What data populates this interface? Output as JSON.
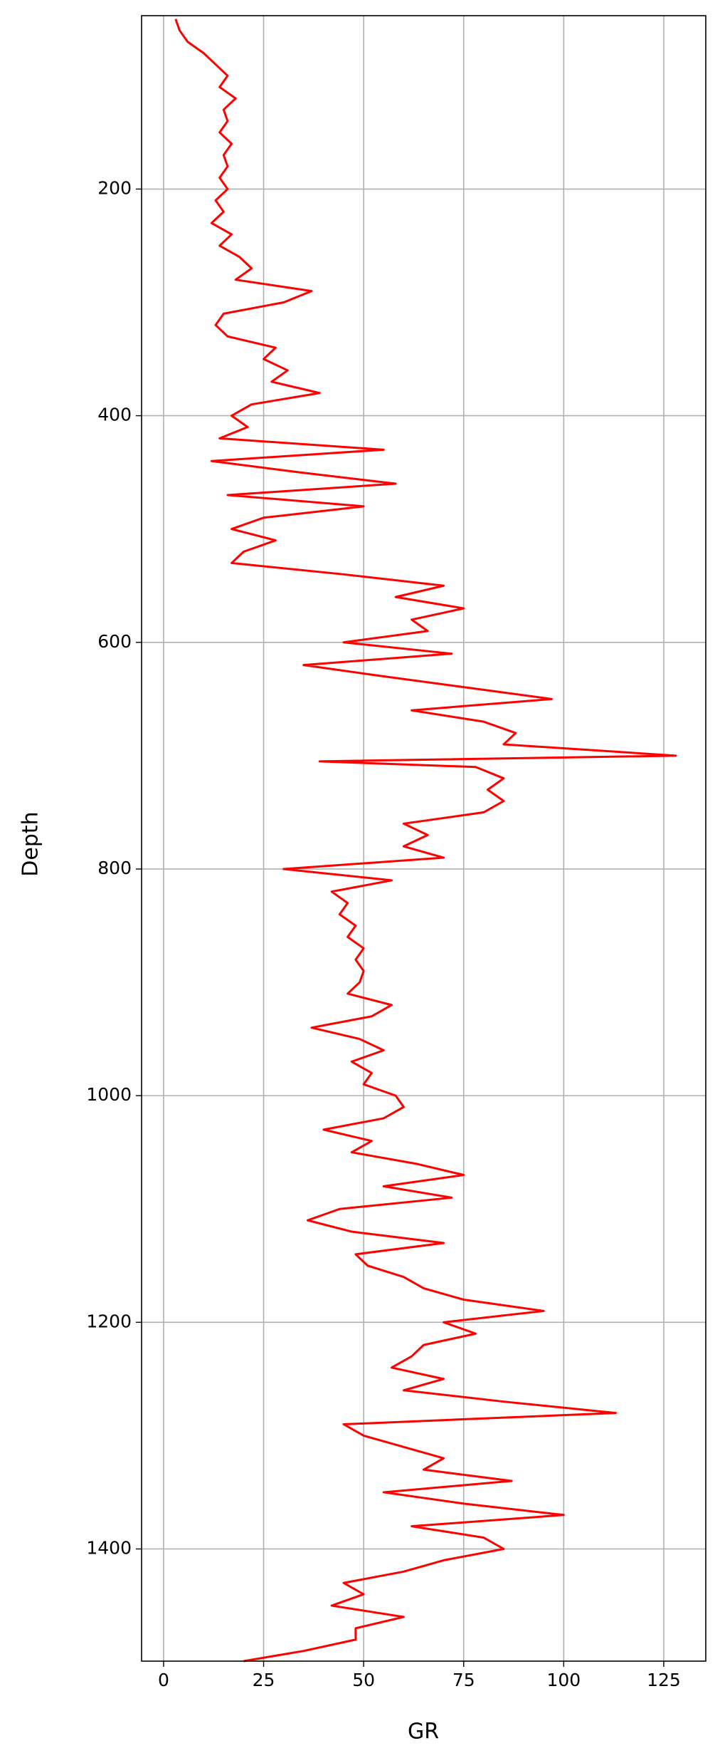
{
  "chart_data": {
    "type": "line",
    "xlabel": "GR",
    "ylabel": "Depth",
    "xlim": [
      -5.5,
      135.5
    ],
    "ylim": [
      1499,
      47
    ],
    "xticks": [
      0,
      25,
      50,
      75,
      100,
      125
    ],
    "yticks": [
      200,
      400,
      600,
      800,
      1000,
      1200,
      1400
    ],
    "grid": true,
    "series": [
      {
        "color": "#ff0000",
        "x": [
          3,
          4,
          6,
          10,
          13,
          16,
          14,
          18,
          15,
          16,
          14,
          17,
          15,
          16,
          14,
          16,
          13,
          15,
          12,
          17,
          14,
          19,
          22,
          18,
          37,
          30,
          15,
          13,
          16,
          28,
          25,
          31,
          27,
          39,
          22,
          17,
          21,
          14,
          55,
          12,
          34,
          58,
          16,
          50,
          25,
          17,
          28,
          20,
          17,
          45,
          70,
          58,
          75,
          62,
          66,
          45,
          72,
          35,
          55,
          76,
          97,
          62,
          80,
          88,
          85,
          128,
          39,
          78,
          85,
          81,
          85,
          80,
          60,
          66,
          60,
          70,
          30,
          57,
          42,
          46,
          44,
          48,
          46,
          50,
          48,
          50,
          49,
          46,
          57,
          52,
          37,
          49,
          55,
          47,
          52,
          50,
          58,
          60,
          55,
          40,
          52,
          47,
          63,
          75,
          55,
          72,
          44,
          36,
          47,
          70,
          48,
          51,
          60,
          65,
          75,
          95,
          70,
          78,
          65,
          62,
          57,
          70,
          60,
          85,
          113,
          45,
          50,
          60,
          70,
          65,
          87,
          55,
          75,
          100,
          62,
          80,
          85,
          70,
          60,
          45,
          50,
          42,
          60,
          48,
          48,
          35,
          20
        ],
        "y": [
          50,
          60,
          70,
          80,
          90,
          100,
          110,
          120,
          130,
          140,
          150,
          160,
          170,
          180,
          190,
          200,
          210,
          220,
          230,
          240,
          250,
          260,
          270,
          280,
          290,
          300,
          310,
          320,
          330,
          340,
          350,
          360,
          370,
          380,
          390,
          400,
          410,
          420,
          430,
          440,
          450,
          460,
          470,
          480,
          490,
          500,
          510,
          520,
          530,
          540,
          550,
          560,
          570,
          580,
          590,
          600,
          610,
          620,
          630,
          640,
          650,
          660,
          670,
          680,
          690,
          700,
          705,
          710,
          720,
          730,
          740,
          750,
          760,
          770,
          780,
          790,
          800,
          810,
          820,
          830,
          840,
          850,
          860,
          870,
          880,
          890,
          900,
          910,
          920,
          930,
          940,
          950,
          960,
          970,
          980,
          990,
          1000,
          1010,
          1020,
          1030,
          1040,
          1050,
          1060,
          1070,
          1080,
          1090,
          1100,
          1110,
          1120,
          1130,
          1140,
          1150,
          1160,
          1170,
          1180,
          1190,
          1200,
          1210,
          1220,
          1230,
          1240,
          1250,
          1260,
          1270,
          1280,
          1290,
          1300,
          1310,
          1320,
          1330,
          1340,
          1350,
          1360,
          1370,
          1380,
          1390,
          1400,
          1410,
          1420,
          1430,
          1440,
          1450,
          1460,
          1470,
          1480,
          1490,
          1499
        ]
      }
    ]
  }
}
